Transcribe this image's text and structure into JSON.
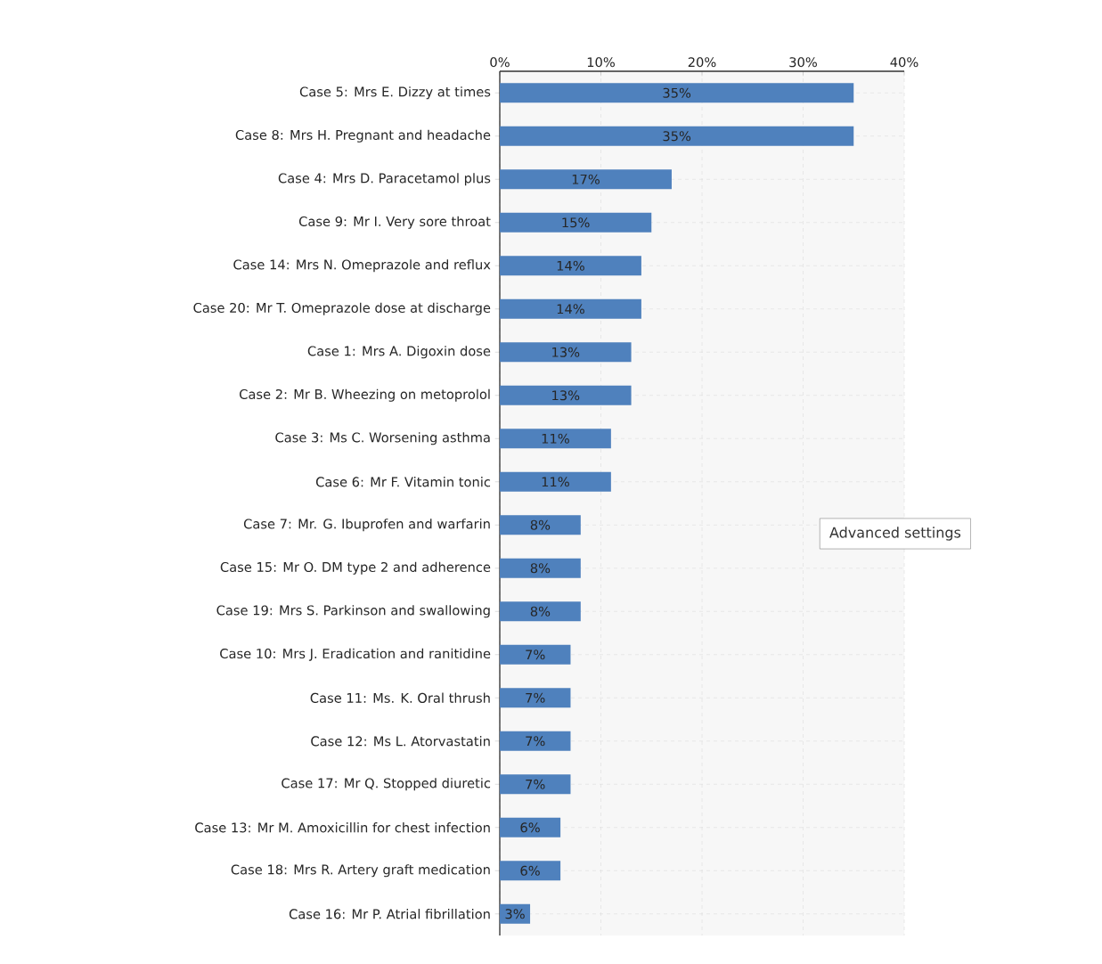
{
  "chart_data": {
    "type": "bar",
    "orientation": "horizontal",
    "categories": [
      "Case 5: Mrs E. Dizzy at times",
      "Case 8: Mrs H. Pregnant and headache",
      "Case 4: Mrs D. Paracetamol plus",
      "Case 9: Mr I. Very sore throat",
      "Case 14: Mrs N. Omeprazole and reflux",
      "Case 20: Mr T. Omeprazole dose at discharge",
      "Case 1: Mrs A. Digoxin dose",
      "Case 2: Mr B. Wheezing on metoprolol",
      "Case 3: Ms C. Worsening asthma",
      "Case 6: Mr F.  Vitamin tonic",
      "Case 7: Mr. G. Ibuprofen and warfarin",
      "Case 15: Mr O. DM type 2 and adherence",
      "Case 19: Mrs S. Parkinson and swallowing",
      "Case 10: Mrs J. Eradication and ranitidine",
      "Case 11: Ms. K. Oral thrush",
      "Case 12: Ms L. Atorvastatin",
      "Case 17: Mr Q. Stopped diuretic",
      "Case 13: Mr M. Amoxicillin for chest infection",
      "Case 18: Mrs R. Artery graft medication",
      "Case 16: Mr P. Atrial fibrillation"
    ],
    "values": [
      35,
      35,
      17,
      15,
      14,
      14,
      13,
      13,
      11,
      11,
      8,
      8,
      8,
      7,
      7,
      7,
      7,
      6,
      6,
      3
    ],
    "value_labels": [
      "35%",
      "35%",
      "17%",
      "15%",
      "14%",
      "14%",
      "13%",
      "13%",
      "11%",
      "11%",
      "8%",
      "8%",
      "8%",
      "7%",
      "7%",
      "7%",
      "7%",
      "6%",
      "6%",
      "3%"
    ],
    "color": "#4f81bd",
    "xlim": [
      0,
      40
    ],
    "xticks": [
      {
        "value": 0,
        "label": "0%"
      },
      {
        "value": 10,
        "label": "10%"
      },
      {
        "value": 20,
        "label": "20%"
      },
      {
        "value": 30,
        "label": "30%"
      },
      {
        "value": 40,
        "label": "40%"
      }
    ],
    "grid": true,
    "annotations": [
      "Advanced settings"
    ]
  }
}
